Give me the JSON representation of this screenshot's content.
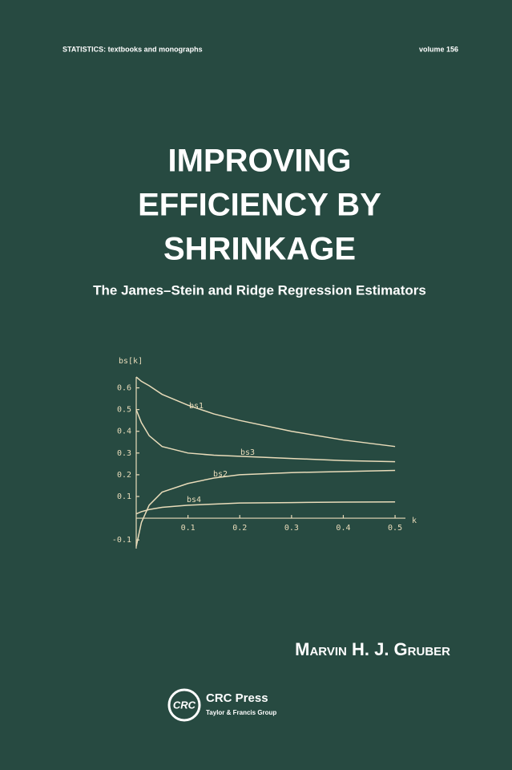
{
  "header": {
    "series": "STATISTICS:  textbooks and monographs",
    "volume": "volume 156"
  },
  "title": [
    "IMPROVING",
    "EFFICIENCY BY",
    "SHRINKAGE"
  ],
  "subtitle": "The James–Stein and Ridge Regression Estimators",
  "author": "Marvin H. J. Gruber",
  "publisher": {
    "logo": "CRC",
    "name": "CRC Press",
    "group": "Taylor & Francis Group"
  },
  "chart_data": {
    "type": "line",
    "y_label": "bs[k]",
    "x_label": "k",
    "color": "#e9dcba",
    "x": [
      0,
      0.01,
      0.025,
      0.05,
      0.1,
      0.15,
      0.2,
      0.3,
      0.4,
      0.5
    ],
    "series": [
      {
        "name": "bs1",
        "values": [
          0.65,
          0.63,
          0.61,
          0.57,
          0.52,
          0.48,
          0.45,
          0.4,
          0.36,
          0.33
        ]
      },
      {
        "name": "bs3",
        "values": [
          0.5,
          0.44,
          0.38,
          0.33,
          0.3,
          0.29,
          0.285,
          0.275,
          0.265,
          0.26
        ]
      },
      {
        "name": "bs2",
        "values": [
          -0.13,
          -0.02,
          0.06,
          0.12,
          0.16,
          0.185,
          0.2,
          0.21,
          0.215,
          0.22
        ]
      },
      {
        "name": "bs4",
        "values": [
          0.02,
          0.03,
          0.04,
          0.05,
          0.06,
          0.065,
          0.07,
          0.072,
          0.074,
          0.075
        ]
      }
    ],
    "xlim": [
      0,
      0.52
    ],
    "ylim": [
      -0.14,
      0.65
    ],
    "xticks": [
      0.1,
      0.2,
      0.3,
      0.4,
      0.5
    ],
    "yticks": [
      -0.1,
      0.1,
      0.2,
      0.3,
      0.4,
      0.5,
      0.6
    ]
  }
}
